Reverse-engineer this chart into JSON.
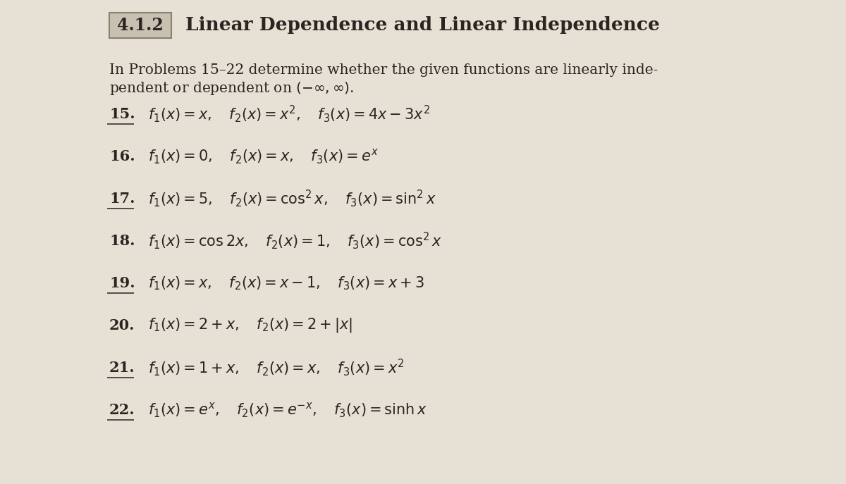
{
  "page_bg": "#e6e0d5",
  "section_num": "4.1.2",
  "section_title": "Linear Dependence and Linear Independence",
  "intro_line1": "In Problems 15–22 determine whether the given functions are linearly inde-",
  "intro_line2": "pendent or dependent on $(-\\infty, \\infty)$.",
  "problems": [
    {
      "num": "15.",
      "expr": "$f_1(x) = x, \\quad f_2(x) = x^2, \\quad f_3(x) = 4x - 3x^2$",
      "underline": true
    },
    {
      "num": "16.",
      "expr": "$f_1(x) = 0, \\quad f_2(x) = x, \\quad f_3(x) = e^x$",
      "underline": false
    },
    {
      "num": "17.",
      "expr": "$f_1(x) = 5, \\quad f_2(x) = \\cos^2 x, \\quad f_3(x) = \\sin^2 x$",
      "underline": true
    },
    {
      "num": "18.",
      "expr": "$f_1(x) = \\cos 2x, \\quad f_2(x) = 1, \\quad f_3(x) = \\cos^2 x$",
      "underline": false
    },
    {
      "num": "19.",
      "expr": "$f_1(x) = x, \\quad f_2(x) = x - 1, \\quad f_3(x) = x + 3$",
      "underline": true
    },
    {
      "num": "20.",
      "expr": "$f_1(x) = 2 + x, \\quad f_2(x) = 2 + |x|$",
      "underline": false
    },
    {
      "num": "21.",
      "expr": "$f_1(x) = 1 + x, \\quad f_2(x) = x, \\quad f_3(x) = x^2$",
      "underline": true
    },
    {
      "num": "22.",
      "expr": "$f_1(x) = e^x, \\quad f_2(x) = e^{-x}, \\quad f_3(x) = \\sinh x$",
      "underline": true
    }
  ],
  "text_color": "#2a2520",
  "box_facecolor": "#c8c0b0",
  "box_edgecolor": "#888070",
  "title_fontsize": 19,
  "section_num_fontsize": 17,
  "intro_fontsize": 14.5,
  "problem_fontsize": 15,
  "num_fontsize": 15
}
